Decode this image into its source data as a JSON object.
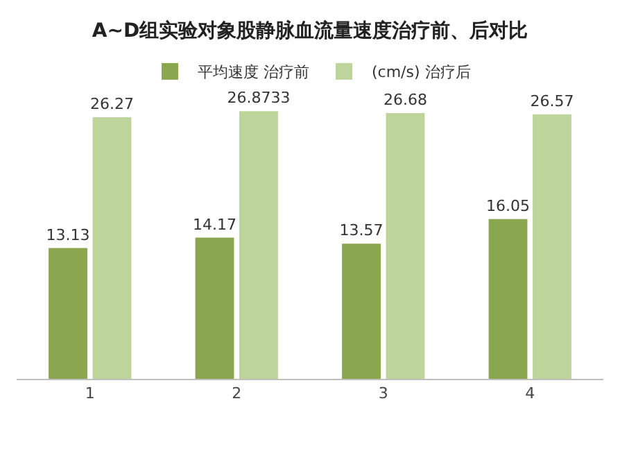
{
  "chart_data": {
    "type": "bar",
    "title": "A~D组实验对象股静脉血流量速度治疗前、后对比",
    "categories": [
      "1",
      "2",
      "3",
      "4"
    ],
    "series": [
      {
        "name": "平均速度 治疗前",
        "color": "#8aa64e",
        "values": [
          13.13,
          14.17,
          13.57,
          16.05
        ]
      },
      {
        "name": "(cm/s) 治疗后",
        "color": "#bdd49a",
        "values": [
          26.27,
          26.8733,
          26.68,
          26.57
        ]
      }
    ],
    "data_labels": true,
    "legend": "top"
  }
}
